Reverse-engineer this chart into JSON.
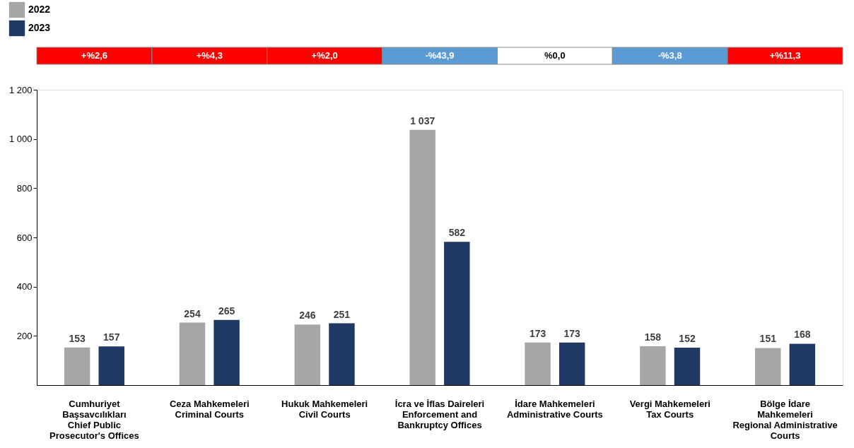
{
  "chart_data": {
    "type": "bar",
    "categories": [
      "Cumhuriyet\nBaşsavcılıkları\nChief Public\nProsecutor's Offices",
      "Ceza Mahkemeleri\nCriminal Courts",
      "Hukuk Mahkemeleri\nCivil Courts",
      "İcra ve İflas Daireleri\nEnforcement and\nBankruptcy Offices",
      "İdare Mahkemeleri\nAdministrative Courts",
      "Vergi Mahkemeleri\nTax Courts",
      "Bölge İdare\nMahkemeleri\nRegional Administrative\nCourts"
    ],
    "series": [
      {
        "name": "2022",
        "color": "#a6a6a6",
        "values": [
          153,
          254,
          246,
          1037,
          173,
          158,
          151
        ],
        "value_labels": [
          "153",
          "254",
          "246",
          "1 037",
          "173",
          "158",
          "151"
        ]
      },
      {
        "name": "2023",
        "color": "#1f3864",
        "values": [
          157,
          265,
          251,
          582,
          173,
          152,
          168
        ],
        "value_labels": [
          "157",
          "265",
          "251",
          "582",
          "173",
          "152",
          "168"
        ]
      }
    ],
    "ylim": [
      0,
      1200
    ],
    "yticks": [
      200,
      400,
      600,
      800,
      {
        "value": 1000,
        "label": "1 000"
      },
      {
        "value": 1200,
        "label": "1 200"
      }
    ],
    "annotations": [
      "+%2,6",
      "+%4,3",
      "+%2,0",
      "-%43,9",
      "%0,0",
      "-%3,8",
      "+%11,3"
    ],
    "grid": false,
    "legend": "top left"
  }
}
